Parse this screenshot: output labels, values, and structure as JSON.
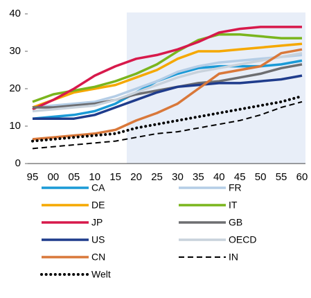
{
  "chart_data": {
    "type": "line",
    "categories": [
      "95",
      "00",
      "05",
      "10",
      "15",
      "20",
      "25",
      "30",
      "35",
      "40",
      "45",
      "50",
      "55",
      "60"
    ],
    "ylim": [
      0,
      40
    ],
    "yticks": [
      0,
      10,
      20,
      30,
      40
    ],
    "series": [
      {
        "name": "CA",
        "color": "#1a9ad6",
        "style": "solid",
        "values": [
          12,
          12.5,
          13,
          14,
          16,
          19,
          22,
          24,
          25.5,
          26,
          26,
          26,
          26.5,
          27.5
        ]
      },
      {
        "name": "FR",
        "color": "#b4cde6",
        "style": "solid",
        "values": [
          15,
          15.5,
          16,
          16.5,
          18,
          20,
          22,
          24.5,
          26,
          27,
          27.5,
          28,
          28.5,
          29
        ]
      },
      {
        "name": "DE",
        "color": "#f5a800",
        "style": "solid",
        "values": [
          15,
          17,
          19,
          20,
          21,
          23,
          25,
          28,
          30,
          30,
          30.5,
          31,
          31.5,
          32
        ]
      },
      {
        "name": "IT",
        "color": "#7ab51d",
        "style": "solid",
        "values": [
          16.5,
          18.5,
          19.5,
          20.5,
          22,
          24,
          26.5,
          30,
          33,
          34.5,
          34.5,
          34,
          33.5,
          33.5
        ]
      },
      {
        "name": "JP",
        "color": "#d7194b",
        "style": "solid",
        "values": [
          14.5,
          17,
          20,
          23.5,
          26,
          28,
          29,
          30.5,
          32.5,
          35,
          36,
          36.5,
          36.5,
          36.5
        ]
      },
      {
        "name": "GB",
        "color": "#6d6e71",
        "style": "solid",
        "values": [
          15,
          15,
          15.5,
          16,
          17,
          18.5,
          19.5,
          20.5,
          21.5,
          22,
          23,
          24,
          25.5,
          26.5
        ]
      },
      {
        "name": "US",
        "color": "#1f3c8c",
        "style": "solid",
        "values": [
          12,
          12,
          12,
          13,
          15,
          17,
          19,
          20.5,
          21,
          21.5,
          21.5,
          22,
          22.5,
          23.5
        ]
      },
      {
        "name": "OECD",
        "color": "#c8d2dc",
        "style": "solid",
        "values": [
          14,
          14.5,
          15,
          15.5,
          17,
          19,
          21,
          23,
          24.5,
          25.5,
          26.5,
          27.5,
          28.5,
          29.5
        ]
      },
      {
        "name": "CN",
        "color": "#d9783a",
        "style": "solid",
        "values": [
          6.5,
          7,
          7.5,
          8,
          9,
          11.5,
          13.5,
          16,
          20,
          24,
          25,
          26,
          29.5,
          30.5
        ]
      },
      {
        "name": "IN",
        "color": "#000000",
        "style": "dashed",
        "values": [
          4,
          4.5,
          5,
          5.5,
          6,
          7,
          8,
          8.5,
          9.5,
          10.5,
          11.5,
          13,
          15,
          16.5
        ]
      },
      {
        "name": "Welt",
        "color": "#000000",
        "style": "dotted",
        "values": [
          6,
          6.5,
          7,
          7.5,
          8,
          9.5,
          10.5,
          11.5,
          12.5,
          13.5,
          14.5,
          15.5,
          16.5,
          18
        ]
      }
    ]
  }
}
